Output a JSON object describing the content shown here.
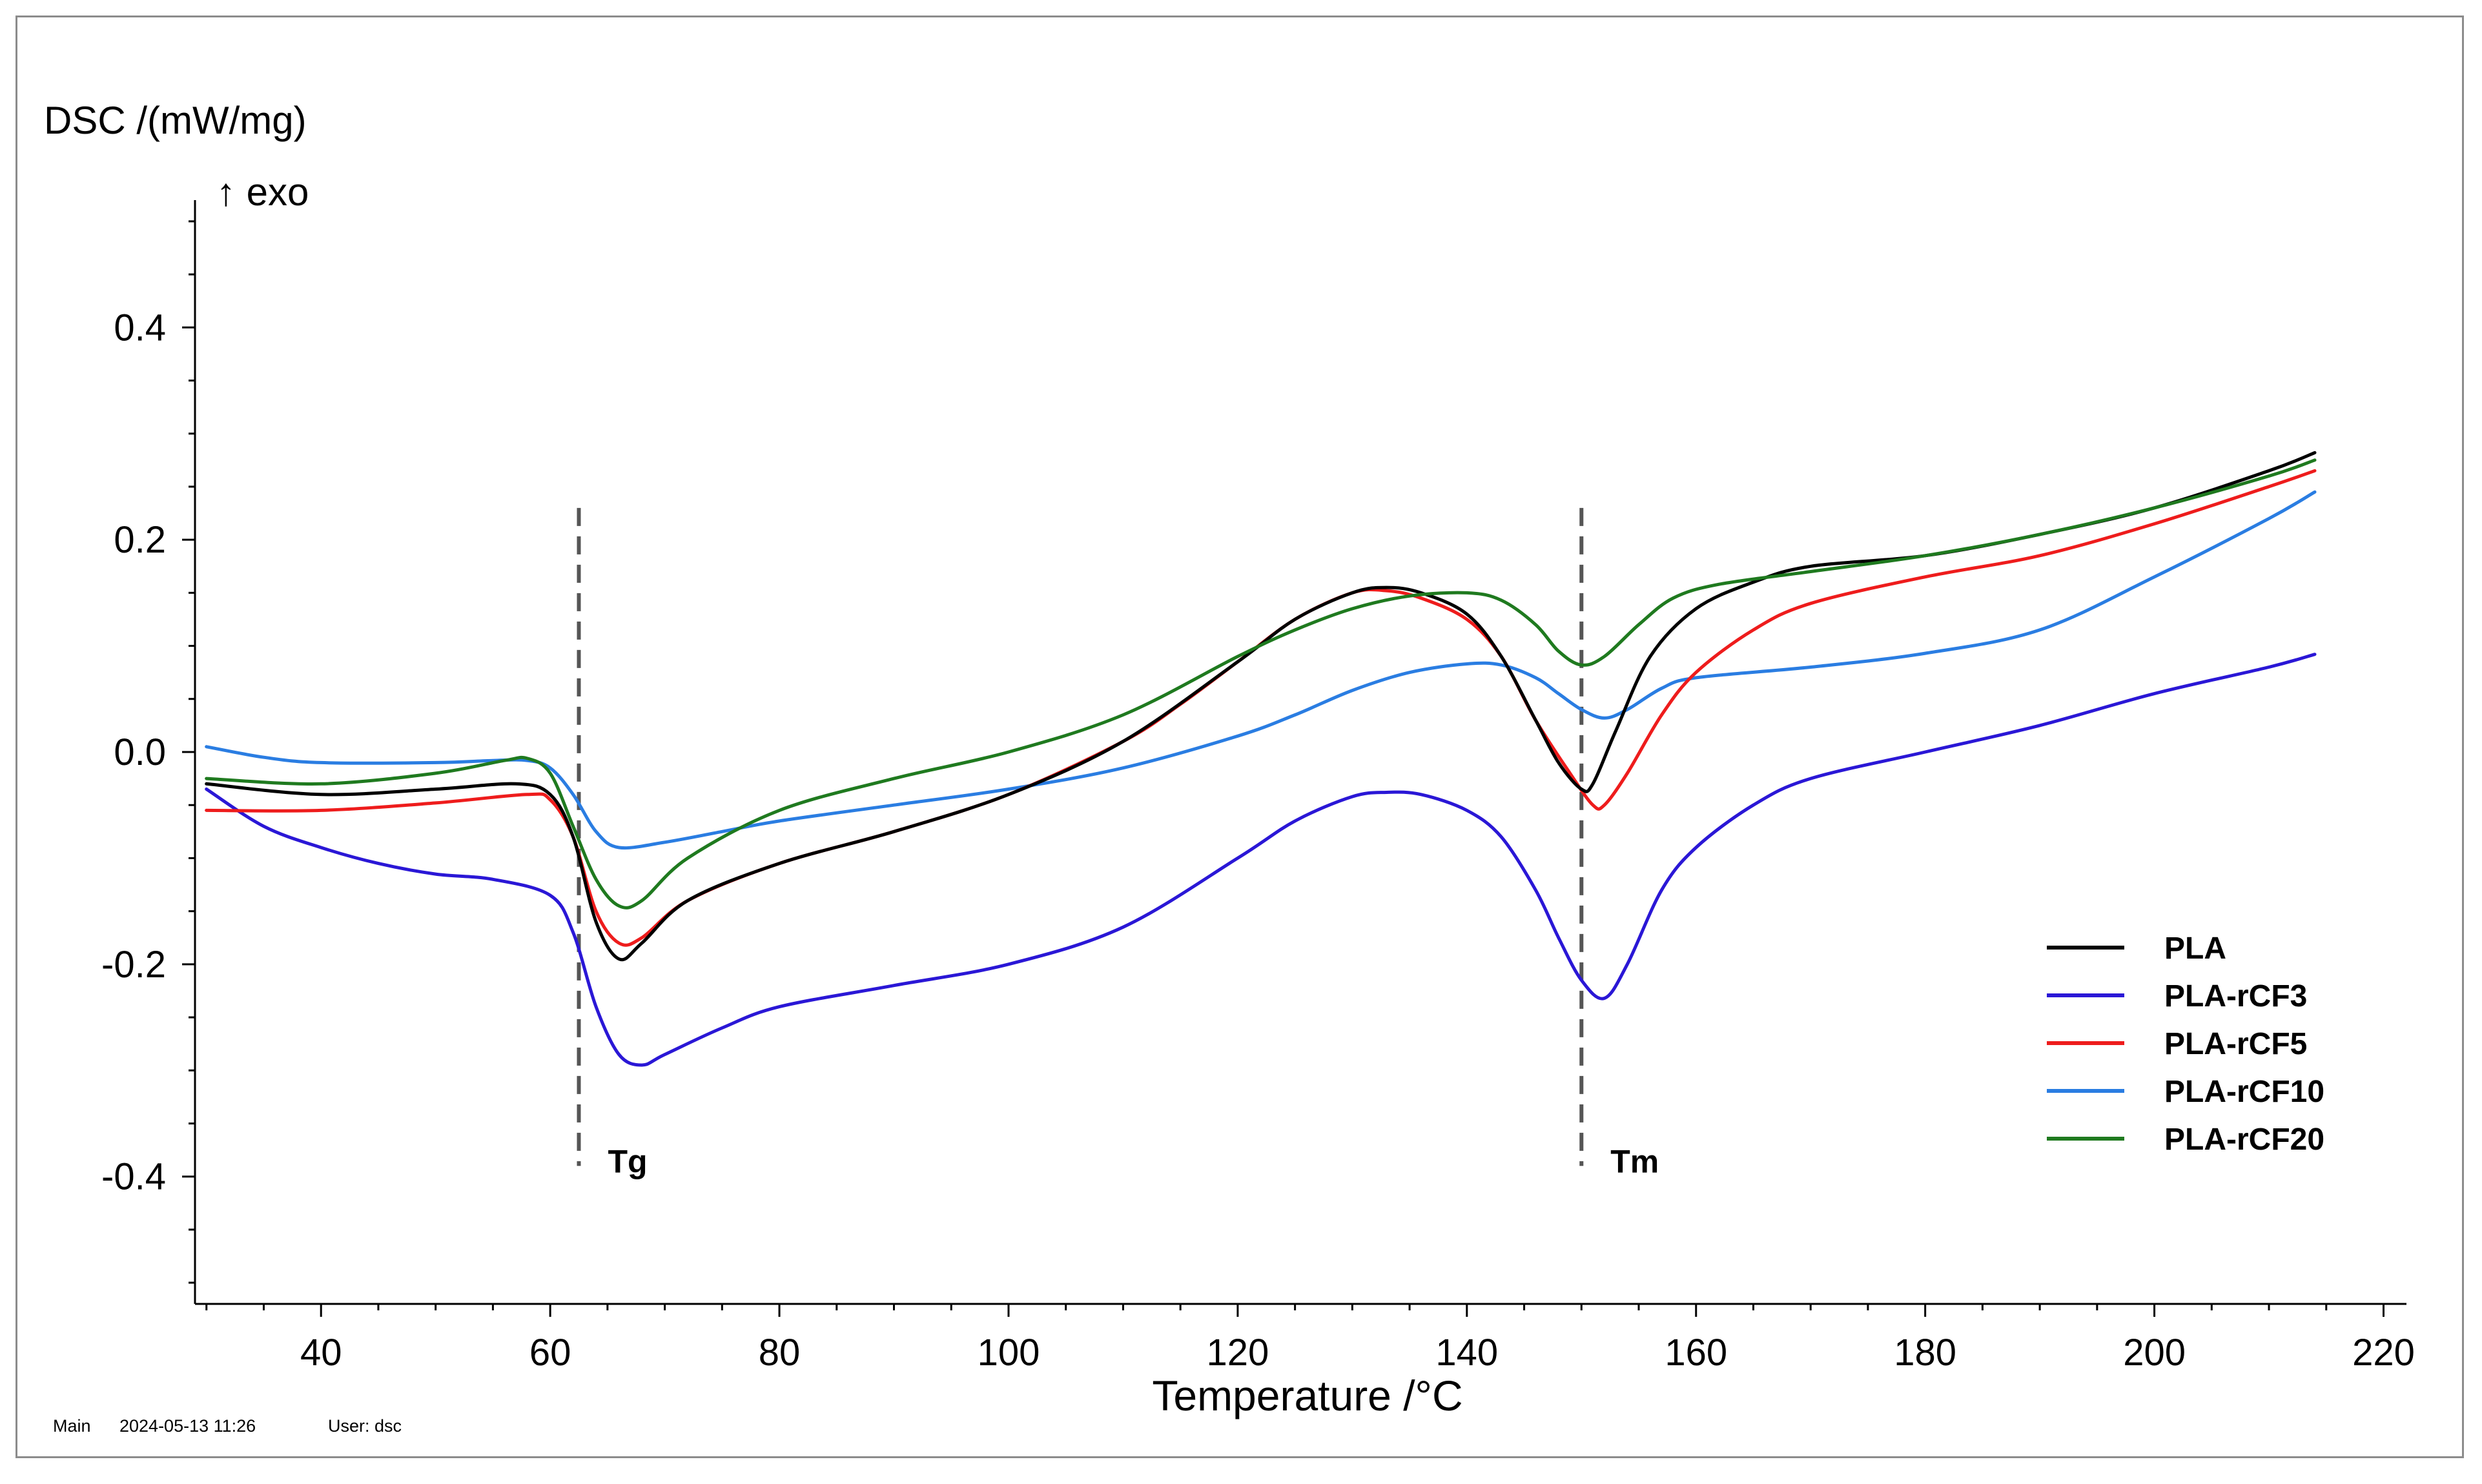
{
  "chart_data": {
    "type": "line",
    "ylabel": "DSC /(mW/mg)",
    "exo_label": "↑ exo",
    "xlabel": "Temperature /°C",
    "xlim": [
      29,
      222
    ],
    "ylim": [
      -0.52,
      0.52
    ],
    "x_ticks": [
      40,
      60,
      80,
      100,
      120,
      140,
      160,
      180,
      200,
      220
    ],
    "y_ticks": [
      0.4,
      0.2,
      0.0,
      -0.2,
      -0.4
    ],
    "y_tick_labels": [
      "0.4",
      "0.2",
      "0.0",
      "-0.2",
      "-0.4"
    ],
    "legend_position": "bottom-right",
    "annotations": [
      {
        "label": "Tg",
        "x": 62.5,
        "y_range": [
          -0.39,
          0.23
        ]
      },
      {
        "label": "Tm",
        "x": 150,
        "y_range": [
          -0.39,
          0.23
        ]
      }
    ],
    "series": [
      {
        "name": "PLA",
        "color": "#000000",
        "points": [
          [
            30,
            -0.03
          ],
          [
            40,
            -0.04
          ],
          [
            50,
            -0.035
          ],
          [
            57,
            -0.03
          ],
          [
            60,
            -0.04
          ],
          [
            62,
            -0.08
          ],
          [
            64,
            -0.16
          ],
          [
            66,
            -0.195
          ],
          [
            68,
            -0.18
          ],
          [
            72,
            -0.14
          ],
          [
            80,
            -0.105
          ],
          [
            90,
            -0.075
          ],
          [
            100,
            -0.04
          ],
          [
            110,
            0.01
          ],
          [
            120,
            0.085
          ],
          [
            125,
            0.125
          ],
          [
            130,
            0.15
          ],
          [
            133,
            0.155
          ],
          [
            136,
            0.15
          ],
          [
            140,
            0.13
          ],
          [
            143,
            0.09
          ],
          [
            146,
            0.03
          ],
          [
            148,
            -0.01
          ],
          [
            150,
            -0.035
          ],
          [
            151,
            -0.03
          ],
          [
            153,
            0.02
          ],
          [
            156,
            0.09
          ],
          [
            160,
            0.135
          ],
          [
            165,
            0.16
          ],
          [
            170,
            0.175
          ],
          [
            180,
            0.185
          ],
          [
            190,
            0.205
          ],
          [
            200,
            0.23
          ],
          [
            210,
            0.265
          ],
          [
            214,
            0.282
          ]
        ]
      },
      {
        "name": "PLA-rCF3",
        "color": "#2a17d6",
        "points": [
          [
            30,
            -0.035
          ],
          [
            35,
            -0.07
          ],
          [
            40,
            -0.09
          ],
          [
            45,
            -0.105
          ],
          [
            50,
            -0.115
          ],
          [
            55,
            -0.12
          ],
          [
            60,
            -0.135
          ],
          [
            62,
            -0.17
          ],
          [
            64,
            -0.24
          ],
          [
            66,
            -0.285
          ],
          [
            68,
            -0.295
          ],
          [
            70,
            -0.285
          ],
          [
            75,
            -0.26
          ],
          [
            80,
            -0.24
          ],
          [
            90,
            -0.22
          ],
          [
            100,
            -0.2
          ],
          [
            110,
            -0.165
          ],
          [
            120,
            -0.1
          ],
          [
            125,
            -0.065
          ],
          [
            130,
            -0.042
          ],
          [
            133,
            -0.038
          ],
          [
            136,
            -0.04
          ],
          [
            140,
            -0.055
          ],
          [
            143,
            -0.08
          ],
          [
            146,
            -0.13
          ],
          [
            148,
            -0.175
          ],
          [
            150,
            -0.215
          ],
          [
            152,
            -0.232
          ],
          [
            154,
            -0.2
          ],
          [
            157,
            -0.13
          ],
          [
            160,
            -0.09
          ],
          [
            165,
            -0.05
          ],
          [
            170,
            -0.025
          ],
          [
            180,
            0.0
          ],
          [
            190,
            0.025
          ],
          [
            200,
            0.055
          ],
          [
            210,
            0.08
          ],
          [
            214,
            0.092
          ]
        ]
      },
      {
        "name": "PLA-rCF5",
        "color": "#ee1c1c",
        "points": [
          [
            30,
            -0.055
          ],
          [
            40,
            -0.055
          ],
          [
            50,
            -0.048
          ],
          [
            58,
            -0.04
          ],
          [
            60,
            -0.045
          ],
          [
            62,
            -0.08
          ],
          [
            64,
            -0.15
          ],
          [
            66,
            -0.18
          ],
          [
            68,
            -0.175
          ],
          [
            72,
            -0.14
          ],
          [
            80,
            -0.105
          ],
          [
            90,
            -0.075
          ],
          [
            100,
            -0.04
          ],
          [
            110,
            0.01
          ],
          [
            115,
            0.045
          ],
          [
            120,
            0.085
          ],
          [
            125,
            0.125
          ],
          [
            130,
            0.15
          ],
          [
            133,
            0.152
          ],
          [
            136,
            0.145
          ],
          [
            140,
            0.125
          ],
          [
            143,
            0.09
          ],
          [
            146,
            0.03
          ],
          [
            149,
            -0.02
          ],
          [
            151,
            -0.05
          ],
          [
            152,
            -0.05
          ],
          [
            154,
            -0.02
          ],
          [
            157,
            0.035
          ],
          [
            160,
            0.075
          ],
          [
            165,
            0.115
          ],
          [
            170,
            0.14
          ],
          [
            180,
            0.165
          ],
          [
            190,
            0.185
          ],
          [
            200,
            0.215
          ],
          [
            210,
            0.25
          ],
          [
            214,
            0.265
          ]
        ]
      },
      {
        "name": "PLA-rCF10",
        "color": "#2a7de2",
        "points": [
          [
            30,
            0.005
          ],
          [
            35,
            -0.005
          ],
          [
            40,
            -0.01
          ],
          [
            50,
            -0.01
          ],
          [
            55,
            -0.008
          ],
          [
            58,
            -0.008
          ],
          [
            60,
            -0.015
          ],
          [
            62,
            -0.04
          ],
          [
            64,
            -0.075
          ],
          [
            66,
            -0.09
          ],
          [
            70,
            -0.085
          ],
          [
            75,
            -0.075
          ],
          [
            80,
            -0.065
          ],
          [
            90,
            -0.05
          ],
          [
            100,
            -0.035
          ],
          [
            110,
            -0.015
          ],
          [
            120,
            0.015
          ],
          [
            125,
            0.035
          ],
          [
            130,
            0.058
          ],
          [
            135,
            0.075
          ],
          [
            140,
            0.083
          ],
          [
            143,
            0.082
          ],
          [
            146,
            0.07
          ],
          [
            148,
            0.055
          ],
          [
            150,
            0.04
          ],
          [
            152,
            0.032
          ],
          [
            154,
            0.04
          ],
          [
            157,
            0.06
          ],
          [
            160,
            0.07
          ],
          [
            170,
            0.08
          ],
          [
            180,
            0.093
          ],
          [
            190,
            0.115
          ],
          [
            200,
            0.165
          ],
          [
            210,
            0.22
          ],
          [
            214,
            0.245
          ]
        ]
      },
      {
        "name": "PLA-rCF20",
        "color": "#1f7a1f",
        "points": [
          [
            30,
            -0.025
          ],
          [
            40,
            -0.03
          ],
          [
            50,
            -0.02
          ],
          [
            56,
            -0.008
          ],
          [
            58,
            -0.006
          ],
          [
            60,
            -0.02
          ],
          [
            62,
            -0.07
          ],
          [
            64,
            -0.12
          ],
          [
            66,
            -0.145
          ],
          [
            68,
            -0.14
          ],
          [
            72,
            -0.1
          ],
          [
            80,
            -0.055
          ],
          [
            90,
            -0.025
          ],
          [
            100,
            0.0
          ],
          [
            110,
            0.035
          ],
          [
            120,
            0.09
          ],
          [
            125,
            0.115
          ],
          [
            130,
            0.135
          ],
          [
            135,
            0.147
          ],
          [
            140,
            0.15
          ],
          [
            143,
            0.143
          ],
          [
            146,
            0.12
          ],
          [
            148,
            0.095
          ],
          [
            150,
            0.082
          ],
          [
            152,
            0.09
          ],
          [
            155,
            0.12
          ],
          [
            158,
            0.145
          ],
          [
            162,
            0.158
          ],
          [
            170,
            0.17
          ],
          [
            180,
            0.185
          ],
          [
            190,
            0.205
          ],
          [
            200,
            0.23
          ],
          [
            210,
            0.26
          ],
          [
            214,
            0.275
          ]
        ]
      }
    ]
  },
  "footer": {
    "view_label": "Main",
    "timestamp": "2024-05-13 11:26",
    "user_label": "User: dsc"
  }
}
